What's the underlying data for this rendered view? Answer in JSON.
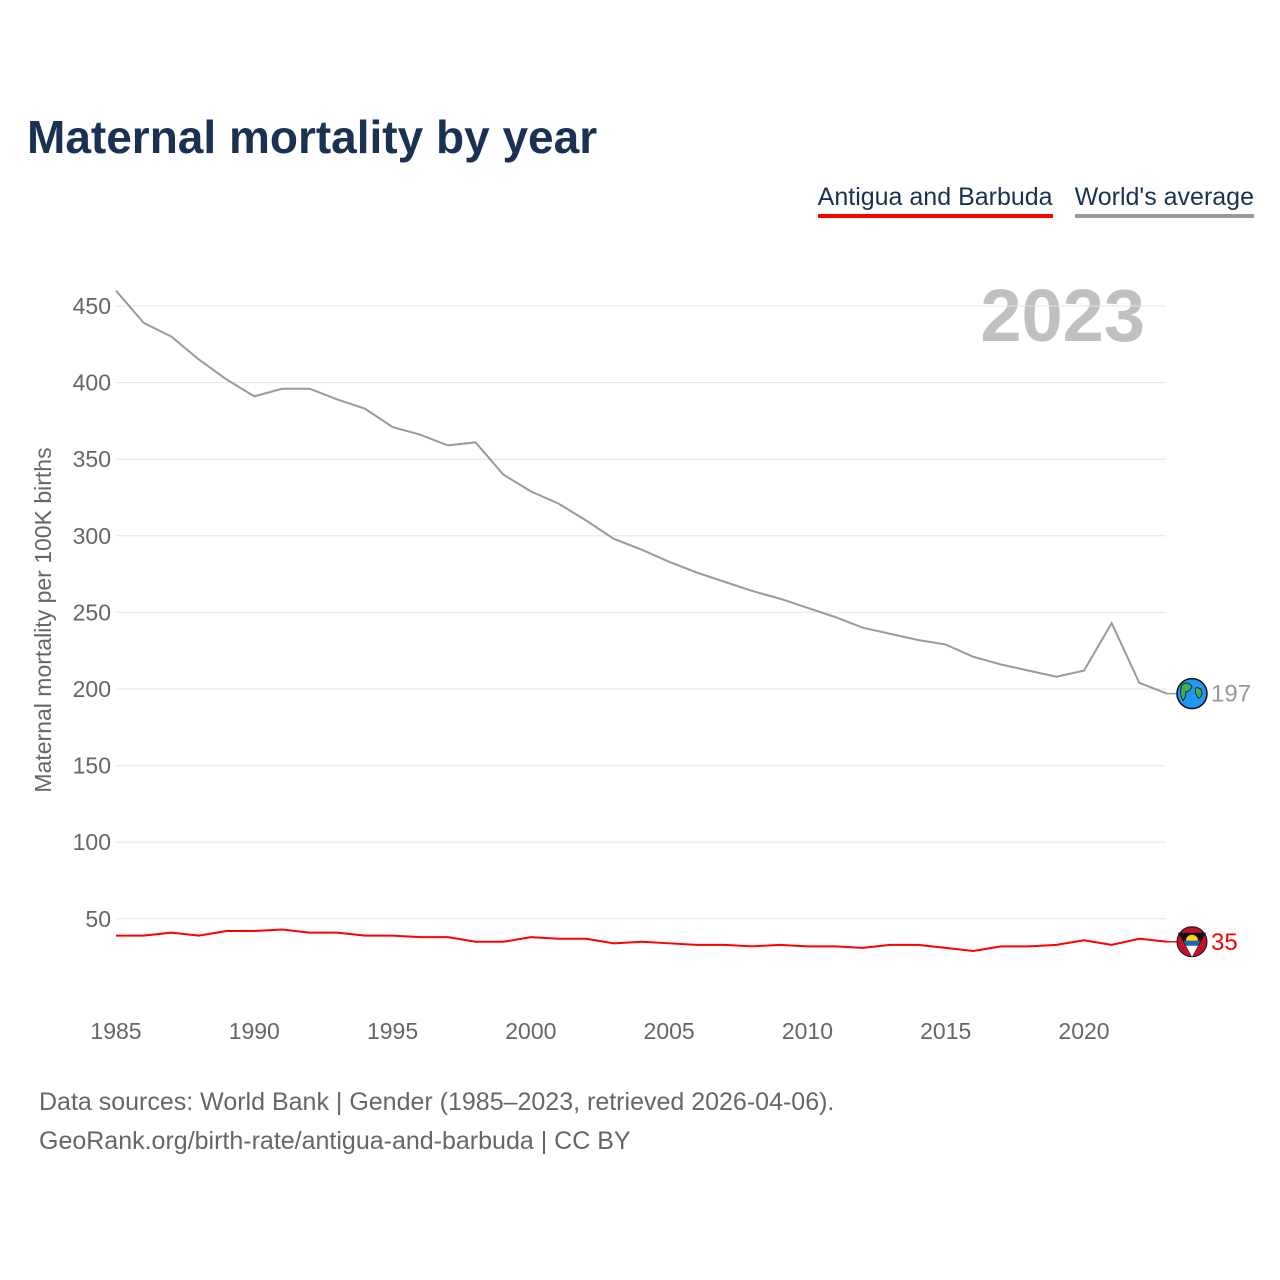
{
  "colors": {
    "title": "#1a3152",
    "country": "#ff0000",
    "world": "#999999",
    "grid": "#e6e6e6",
    "year": "#c0c0c0"
  },
  "chart_data": {
    "type": "line",
    "title": "Maternal mortality by year",
    "ylabel": "Maternal mortality per 100K births",
    "xlabel": "",
    "year_label": "2023",
    "xlim": [
      1985,
      2023
    ],
    "ylim": [
      0,
      465
    ],
    "x_ticks": [
      1985,
      1990,
      1995,
      2000,
      2005,
      2010,
      2015,
      2020
    ],
    "y_ticks": [
      50,
      100,
      150,
      200,
      250,
      300,
      350,
      400,
      450
    ],
    "grid": true,
    "legend_position": "top-right",
    "x": [
      1985,
      1986,
      1987,
      1988,
      1989,
      1990,
      1991,
      1992,
      1993,
      1994,
      1995,
      1996,
      1997,
      1998,
      1999,
      2000,
      2001,
      2002,
      2003,
      2004,
      2005,
      2006,
      2007,
      2008,
      2009,
      2010,
      2011,
      2012,
      2013,
      2014,
      2015,
      2016,
      2017,
      2018,
      2019,
      2020,
      2021,
      2022,
      2023
    ],
    "series": [
      {
        "name": "Antigua and Barbuda",
        "color": "#ff0000",
        "end_label": "35",
        "icon": "antigua-flag-icon",
        "values": [
          39,
          39,
          41,
          39,
          42,
          42,
          43,
          41,
          41,
          39,
          39,
          38,
          38,
          35,
          35,
          38,
          37,
          37,
          34,
          35,
          34,
          33,
          33,
          32,
          33,
          32,
          32,
          31,
          33,
          33,
          31,
          29,
          32,
          32,
          33,
          36,
          33,
          37,
          35
        ]
      },
      {
        "name": "World's average",
        "color": "#999999",
        "end_label": "197",
        "icon": "globe-icon",
        "values": [
          460,
          439,
          430,
          415,
          402,
          391,
          396,
          396,
          389,
          383,
          371,
          366,
          359,
          361,
          340,
          329,
          321,
          310,
          298,
          291,
          283,
          276,
          270,
          264,
          259,
          253,
          247,
          240,
          236,
          232,
          229,
          221,
          216,
          212,
          208,
          212,
          243,
          204,
          197
        ]
      }
    ]
  },
  "footer": {
    "line1": "Data sources: World Bank | Gender (1985–2023, retrieved 2026-04-06).",
    "line2": "GeoRank.org/birth-rate/antigua-and-barbuda | CC BY"
  }
}
